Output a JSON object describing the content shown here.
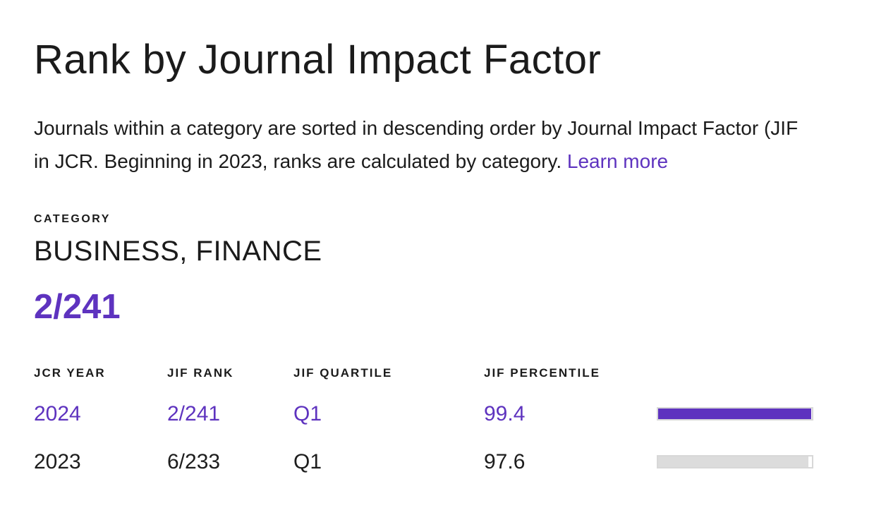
{
  "page": {
    "title": "Rank by Journal Impact Factor",
    "description_line1": "Journals within a category are sorted in descending order by Journal Impact Factor (JIF",
    "description_line2": "in JCR. Beginning in 2023, ranks are calculated by category. ",
    "learn_more_label": "Learn more"
  },
  "category": {
    "label": "CATEGORY",
    "name": "BUSINESS, FINANCE",
    "rank": "2/241"
  },
  "table": {
    "headers": [
      "JCR YEAR",
      "JIF RANK",
      "JIF QUARTILE",
      "JIF PERCENTILE"
    ],
    "rows": [
      {
        "year": "2024",
        "jif_rank": "2/241",
        "quartile": "Q1",
        "percentile": 99.4
      },
      {
        "year": "2023",
        "jif_rank": "6/233",
        "quartile": "Q1",
        "percentile": 97.6
      }
    ]
  },
  "colors": {
    "accent_purple": "#5E33BF",
    "bar_gray_fill": "#DCDCDC",
    "bar_track_border": "#D8D8D8",
    "text_black": "#1B1B1B"
  }
}
